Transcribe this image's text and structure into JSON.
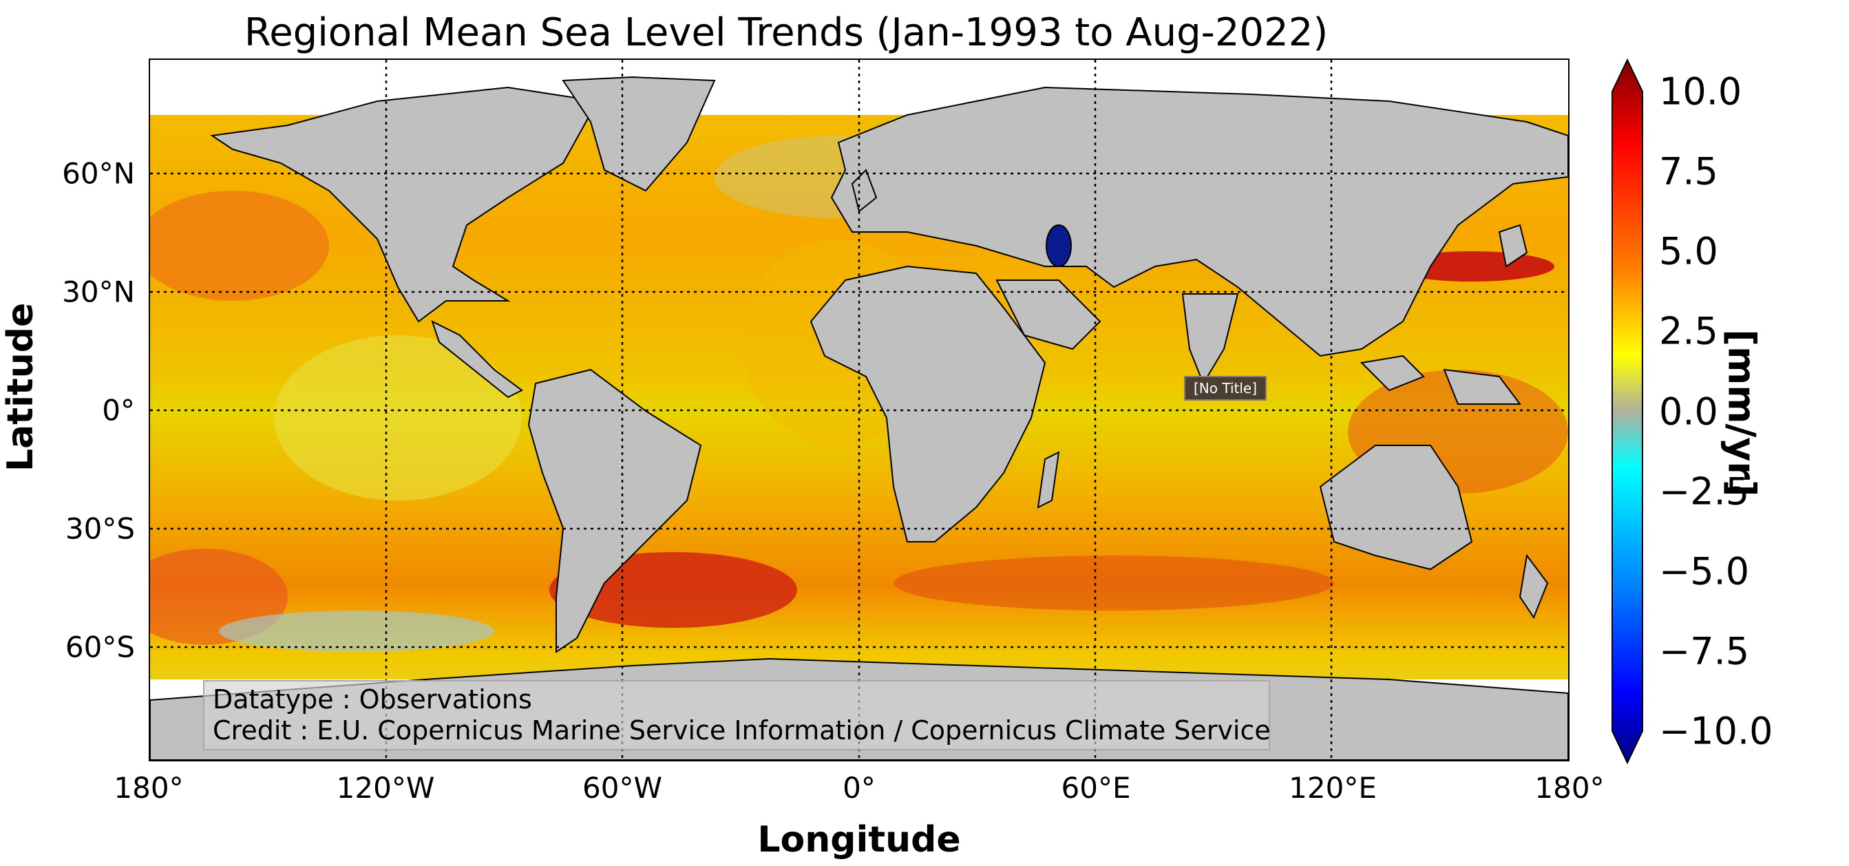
{
  "title": "Regional Mean Sea Level Trends (Jan-1993 to Aug-2022)",
  "xlabel": "Longitude",
  "ylabel": "Latitude",
  "x_ticks": [
    "180°",
    "120°W",
    "60°W",
    "0°",
    "60°E",
    "120°E",
    "180°"
  ],
  "y_ticks": [
    "60°N",
    "30°N",
    "0°",
    "30°S",
    "60°S"
  ],
  "colorbar": {
    "label": "[mm/yr]",
    "ticks": [
      "10.0",
      "7.5",
      "5.0",
      "2.5",
      "0.0",
      "−2.5",
      "−5.0",
      "−7.5",
      "−10.0"
    ],
    "range": [
      -10,
      10
    ],
    "colormap": "jet",
    "extend": "both"
  },
  "annotation": {
    "line1": "Datatype : Observations",
    "line2": "Credit : E.U. Copernicus Marine Service Information / Copernicus Climate Service"
  },
  "tooltip": "[No Title]",
  "colors": {
    "land": "#c0c0c0",
    "ocean_base": "#f5b800",
    "no_data": "#ffffff",
    "grid": "#000000"
  }
}
